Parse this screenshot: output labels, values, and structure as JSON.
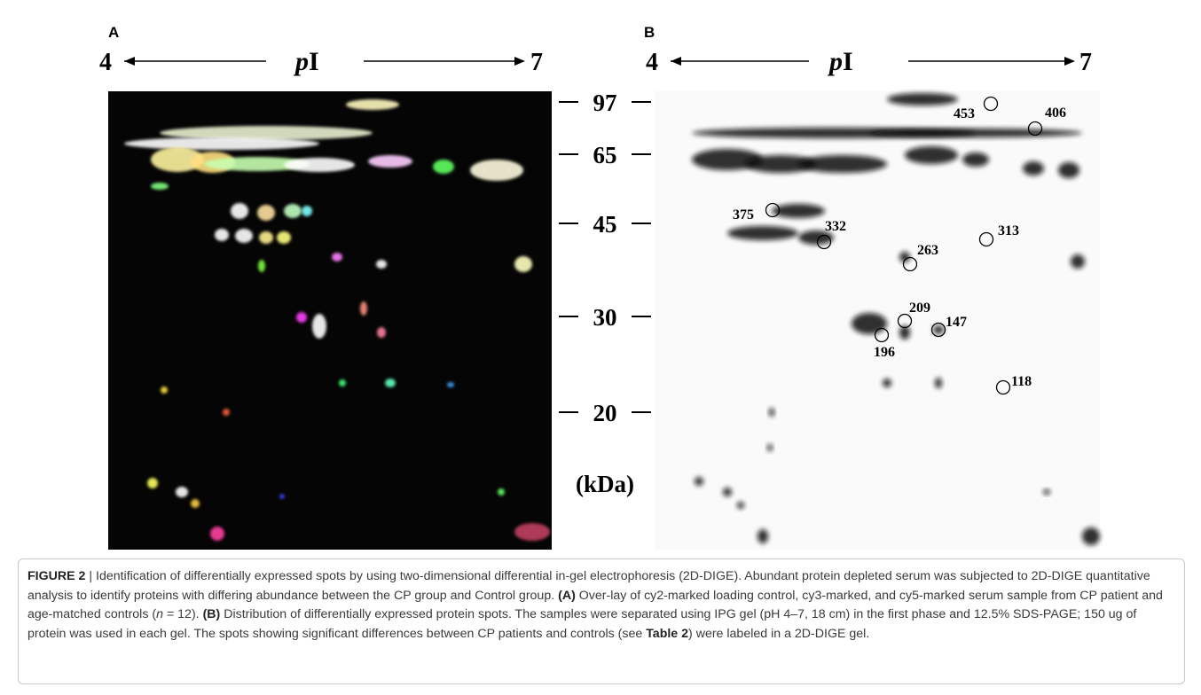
{
  "panels": [
    {
      "letter": "A",
      "ph_left": "4",
      "ph_label": [
        "p",
        "I"
      ],
      "ph_right": "7"
    },
    {
      "letter": "B",
      "ph_left": "4",
      "ph_label": [
        "p",
        "I"
      ],
      "ph_right": "7"
    }
  ],
  "mass_markers": [
    97,
    65,
    45,
    30,
    20
  ],
  "mass_unit": "(kDa)",
  "spots": [
    "453",
    "406",
    "375",
    "332",
    "263",
    "313",
    "209",
    "147",
    "196",
    "118"
  ],
  "caption": [
    "FIGURE 2",
    " | Identification of differentially expressed spots by using two-dimensional differential in-gel electrophoresis (2D-DIGE). Abundant protein depleted serum was subjected to 2D-DIGE quantitative analysis to identify proteins with differing abundance between the CP group and Control group. ",
    "(A)",
    " Over-lay of cy2-marked loading control, cy3-marked, and cy5-marked serum sample from CP patient and age-matched controls (",
    "n",
    " = 12). ",
    "(B)",
    " Distribution of differentially expressed protein spots. The samples were separated using IPG gel (pH 4–7, 18 cm) in the first phase and 12.5% SDS-PAGE; 150 ug of protein was used in each gel. The spots showing significant differences between CP patients and controls (see ",
    "Table 2",
    ") were labeled in a 2D-DIGE gel."
  ]
}
